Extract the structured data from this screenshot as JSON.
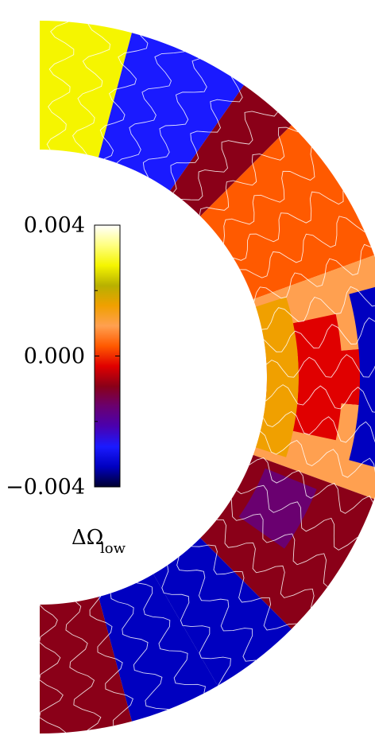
{
  "chart_data": {
    "type": "heatmap",
    "title": "",
    "plot": "meridional contour map of differential rotation in a spherical shell (latitude -90 to 90)",
    "latitude_range_deg": [
      -90,
      90
    ],
    "colorbar": {
      "label_symbol": "ΔΩ",
      "label_subscript": "low",
      "range": [
        -0.004,
        0.004
      ],
      "tick_values": [
        0.004,
        0.0,
        -0.004
      ],
      "tick_labels": [
        "0.004",
        "0.000",
        "−0.004"
      ],
      "orientation": "vertical",
      "colors": [
        "#000030",
        "#0000c0",
        "#1a1aff",
        "#4a00b0",
        "#6a0070",
        "#8a0018",
        "#e00000",
        "#ff5a00",
        "#ffa050",
        "#f0a000",
        "#b8b000",
        "#f5f500",
        "#ffff80",
        "#ffffff"
      ]
    },
    "bands": [
      {
        "lat_range": [
          75,
          90
        ],
        "level": 0.0028
      },
      {
        "lat_range": [
          55,
          75
        ],
        "level": -0.003
      },
      {
        "lat_range": [
          45,
          55
        ],
        "level": -0.0012
      },
      {
        "lat_range": [
          20,
          45
        ],
        "level": 0.0005
      },
      {
        "lat_range": [
          5,
          20
        ],
        "level": 0.0012
      },
      {
        "lat_range": [
          -5,
          5
        ],
        "level": -0.0003
      },
      {
        "lat_range": [
          -20,
          -5
        ],
        "level": 0.0007
      },
      {
        "lat_range": [
          -45,
          -20
        ],
        "level": -0.0008
      },
      {
        "lat_range": [
          -60,
          -45
        ],
        "level": -0.0032
      },
      {
        "lat_range": [
          -75,
          -60
        ],
        "level": -0.0035
      },
      {
        "lat_range": [
          -90,
          -75
        ],
        "level": -0.001
      }
    ]
  }
}
